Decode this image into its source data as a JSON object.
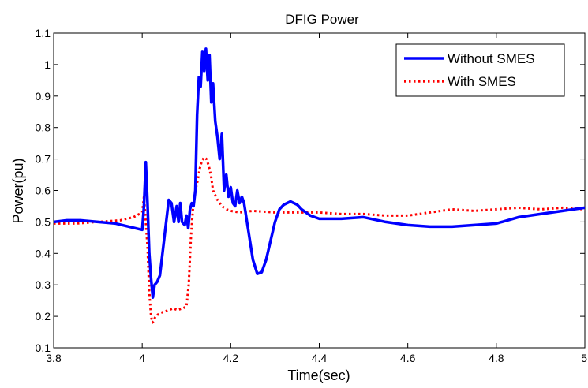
{
  "chart_data": {
    "type": "line",
    "title": "DFIG Power",
    "xlabel": "Time(sec)",
    "ylabel": "Power(pu)",
    "xlim": [
      3.8,
      5.0
    ],
    "ylim": [
      0.1,
      1.1
    ],
    "xticks": [
      "3.8",
      "4",
      "4.2",
      "4.4",
      "4.6",
      "4.8",
      "5"
    ],
    "yticks": [
      "0.1",
      "0.2",
      "0.3",
      "0.4",
      "0.5",
      "0.6",
      "0.7",
      "0.8",
      "0.9",
      "1",
      "1.1"
    ],
    "grid": false,
    "legend_position": "top-right",
    "series": [
      {
        "name": "Without SMES",
        "color": "#0000ff",
        "style": "solid",
        "x": [
          3.8,
          3.83,
          3.86,
          3.9,
          3.94,
          3.97,
          4.0,
          4.004,
          4.008,
          4.012,
          4.016,
          4.02,
          4.024,
          4.028,
          4.034,
          4.04,
          4.05,
          4.06,
          4.066,
          4.072,
          4.078,
          4.082,
          4.086,
          4.09,
          4.096,
          4.1,
          4.104,
          4.108,
          4.112,
          4.116,
          4.12,
          4.124,
          4.128,
          4.132,
          4.136,
          4.14,
          4.144,
          4.148,
          4.152,
          4.156,
          4.16,
          4.165,
          4.17,
          4.175,
          4.18,
          4.185,
          4.19,
          4.195,
          4.2,
          4.205,
          4.21,
          4.215,
          4.22,
          4.225,
          4.23,
          4.24,
          4.25,
          4.26,
          4.27,
          4.28,
          4.29,
          4.3,
          4.31,
          4.32,
          4.335,
          4.35,
          4.36,
          4.38,
          4.4,
          4.45,
          4.5,
          4.55,
          4.6,
          4.65,
          4.7,
          4.75,
          4.8,
          4.85,
          4.9,
          4.95,
          5.0
        ],
        "y": [
          0.5,
          0.505,
          0.505,
          0.5,
          0.495,
          0.485,
          0.475,
          0.55,
          0.69,
          0.56,
          0.4,
          0.32,
          0.26,
          0.3,
          0.31,
          0.33,
          0.45,
          0.57,
          0.56,
          0.5,
          0.55,
          0.5,
          0.56,
          0.5,
          0.49,
          0.52,
          0.48,
          0.54,
          0.56,
          0.55,
          0.6,
          0.84,
          0.96,
          0.93,
          1.04,
          0.98,
          1.05,
          0.95,
          1.03,
          0.88,
          0.94,
          0.82,
          0.77,
          0.7,
          0.78,
          0.6,
          0.65,
          0.58,
          0.61,
          0.56,
          0.55,
          0.6,
          0.56,
          0.58,
          0.56,
          0.47,
          0.38,
          0.335,
          0.34,
          0.38,
          0.44,
          0.5,
          0.54,
          0.555,
          0.565,
          0.555,
          0.54,
          0.52,
          0.51,
          0.51,
          0.515,
          0.5,
          0.49,
          0.485,
          0.485,
          0.49,
          0.495,
          0.515,
          0.525,
          0.535,
          0.545
        ]
      },
      {
        "name": "With SMES",
        "color": "#ff0000",
        "style": "dotted",
        "x": [
          3.8,
          3.85,
          3.9,
          3.95,
          3.98,
          4.0,
          4.004,
          4.008,
          4.012,
          4.016,
          4.02,
          4.023,
          4.026,
          4.03,
          4.04,
          4.05,
          4.06,
          4.07,
          4.08,
          4.09,
          4.1,
          4.105,
          4.11,
          4.115,
          4.12,
          4.125,
          4.13,
          4.135,
          4.14,
          4.145,
          4.15,
          4.155,
          4.16,
          4.17,
          4.18,
          4.19,
          4.2,
          4.22,
          4.25,
          4.3,
          4.35,
          4.4,
          4.45,
          4.5,
          4.55,
          4.6,
          4.65,
          4.7,
          4.75,
          4.8,
          4.85,
          4.9,
          4.95,
          5.0
        ],
        "y": [
          0.495,
          0.495,
          0.5,
          0.505,
          0.515,
          0.53,
          0.58,
          0.5,
          0.42,
          0.28,
          0.2,
          0.18,
          0.185,
          0.2,
          0.21,
          0.215,
          0.22,
          0.225,
          0.22,
          0.225,
          0.23,
          0.3,
          0.45,
          0.55,
          0.6,
          0.63,
          0.67,
          0.695,
          0.705,
          0.7,
          0.68,
          0.65,
          0.6,
          0.57,
          0.55,
          0.54,
          0.535,
          0.53,
          0.535,
          0.53,
          0.53,
          0.53,
          0.525,
          0.525,
          0.52,
          0.52,
          0.53,
          0.54,
          0.535,
          0.54,
          0.545,
          0.54,
          0.545,
          0.54
        ]
      }
    ]
  }
}
